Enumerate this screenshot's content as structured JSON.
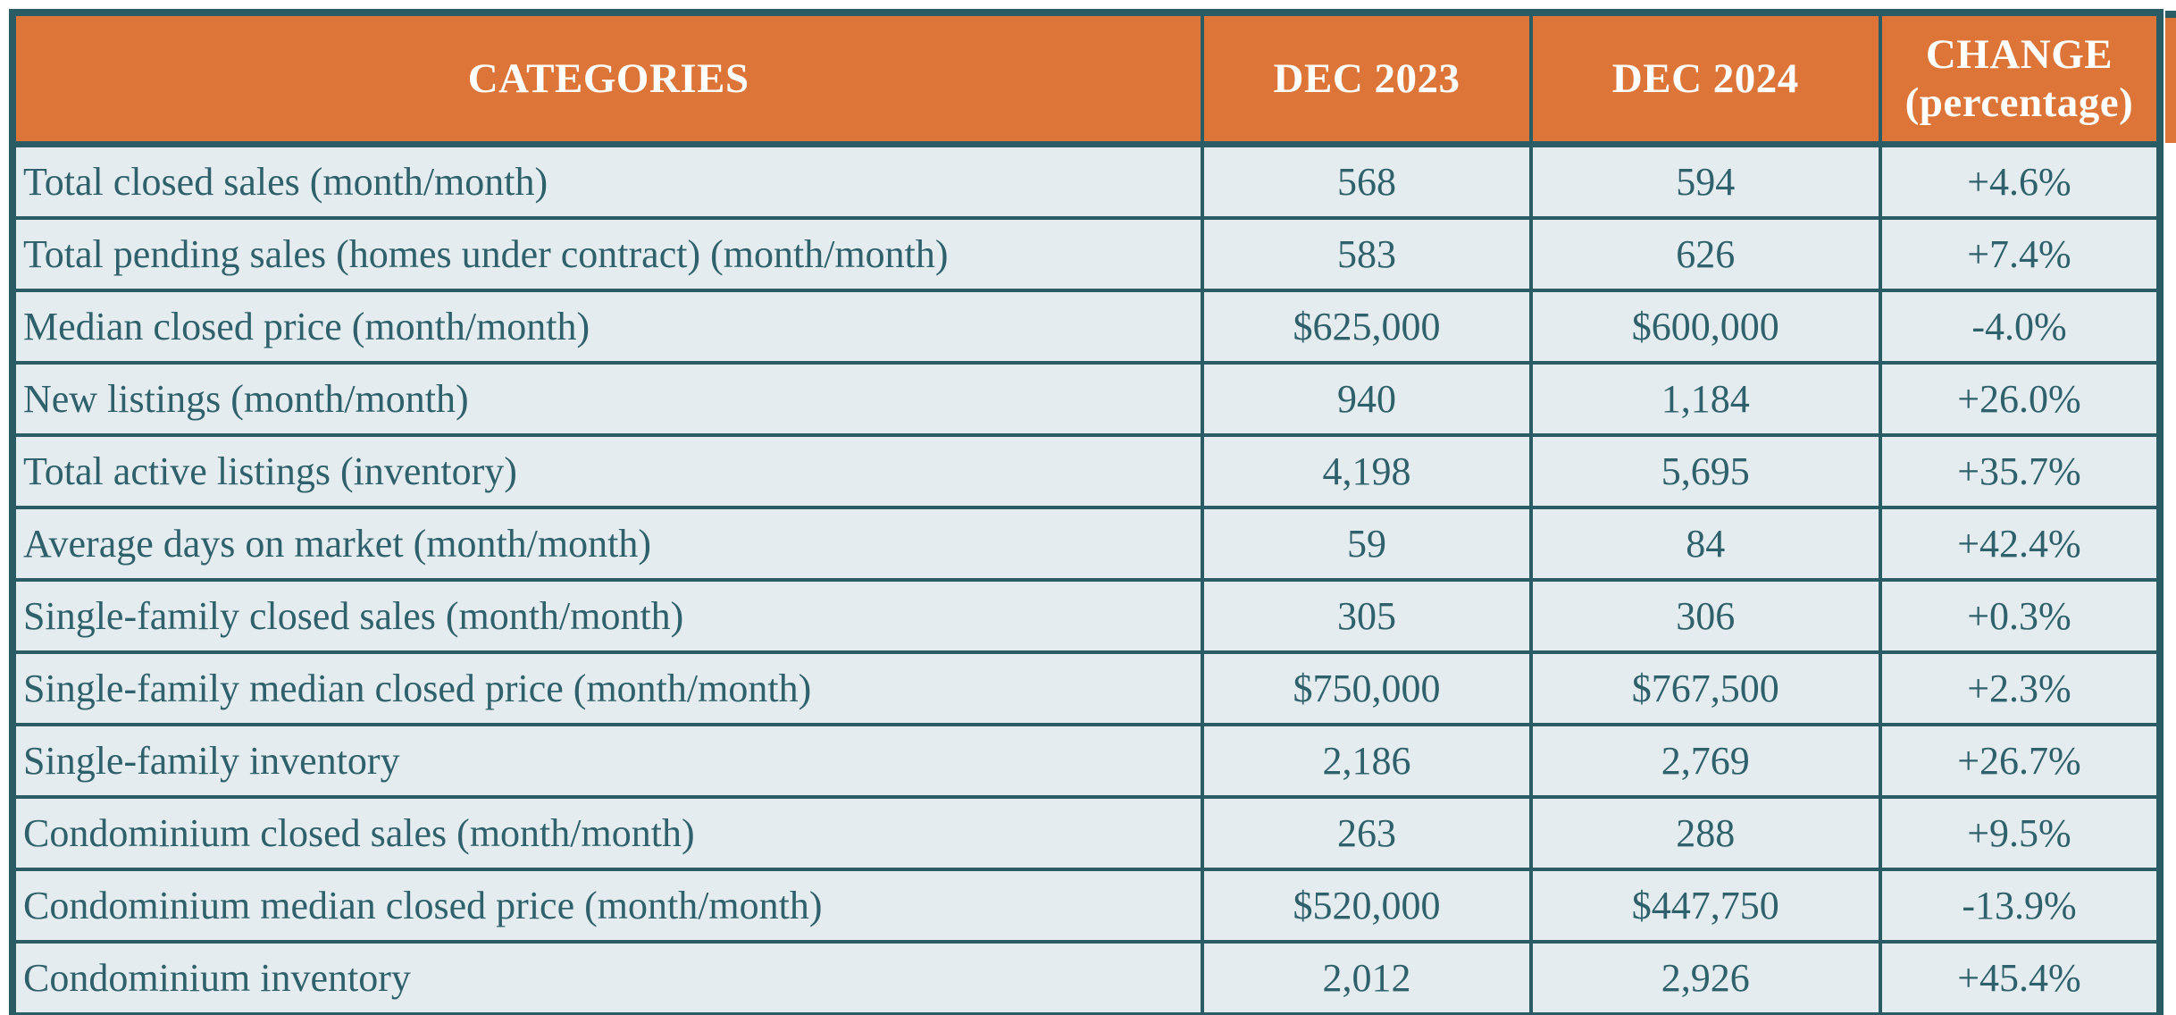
{
  "chart_data": {
    "type": "table",
    "title": "",
    "columns": [
      "CATEGORIES",
      "DEC 2023",
      "DEC 2024",
      "CHANGE (percentage)"
    ],
    "rows": [
      {
        "category": "Total closed sales (month/month)",
        "dec_2023": "568",
        "dec_2024": "594",
        "change": "+4.6%"
      },
      {
        "category": "Total pending sales (homes under contract) (month/month)",
        "dec_2023": "583",
        "dec_2024": "626",
        "change": "+7.4%"
      },
      {
        "category": "Median closed price (month/month)",
        "dec_2023": "$625,000",
        "dec_2024": "$600,000",
        "change": "-4.0%"
      },
      {
        "category": "New listings (month/month)",
        "dec_2023": "940",
        "dec_2024": "1,184",
        "change": "+26.0%"
      },
      {
        "category": "Total active listings (inventory)",
        "dec_2023": "4,198",
        "dec_2024": "5,695",
        "change": "+35.7%"
      },
      {
        "category": "Average days on market (month/month)",
        "dec_2023": "59",
        "dec_2024": "84",
        "change": "+42.4%"
      },
      {
        "category": "Single-family closed sales (month/month)",
        "dec_2023": "305",
        "dec_2024": "306",
        "change": "+0.3%"
      },
      {
        "category": "Single-family median closed price (month/month)",
        "dec_2023": "$750,000",
        "dec_2024": "$767,500",
        "change": "+2.3%"
      },
      {
        "category": "Single-family inventory",
        "dec_2023": "2,186",
        "dec_2024": "2,769",
        "change": "+26.7%"
      },
      {
        "category": "Condominium closed sales (month/month)",
        "dec_2023": "263",
        "dec_2024": "288",
        "change": "+9.5%"
      },
      {
        "category": "Condominium median closed price (month/month)",
        "dec_2023": "$520,000",
        "dec_2024": "$447,750",
        "change": "-13.9%"
      },
      {
        "category": "Condominium inventory",
        "dec_2023": "2,012",
        "dec_2024": "2,926",
        "change": "+45.4%"
      }
    ]
  },
  "display": {
    "change_header_line1": "CHANGE",
    "change_header_line2": "(percentage)"
  },
  "colors": {
    "header_bg": "#DD7438",
    "header_text": "#FFFFFF",
    "cell_bg": "#E5ECEF",
    "text": "#2E616B",
    "border": "#2A5C66",
    "page_bg": "#FFFFFF"
  }
}
